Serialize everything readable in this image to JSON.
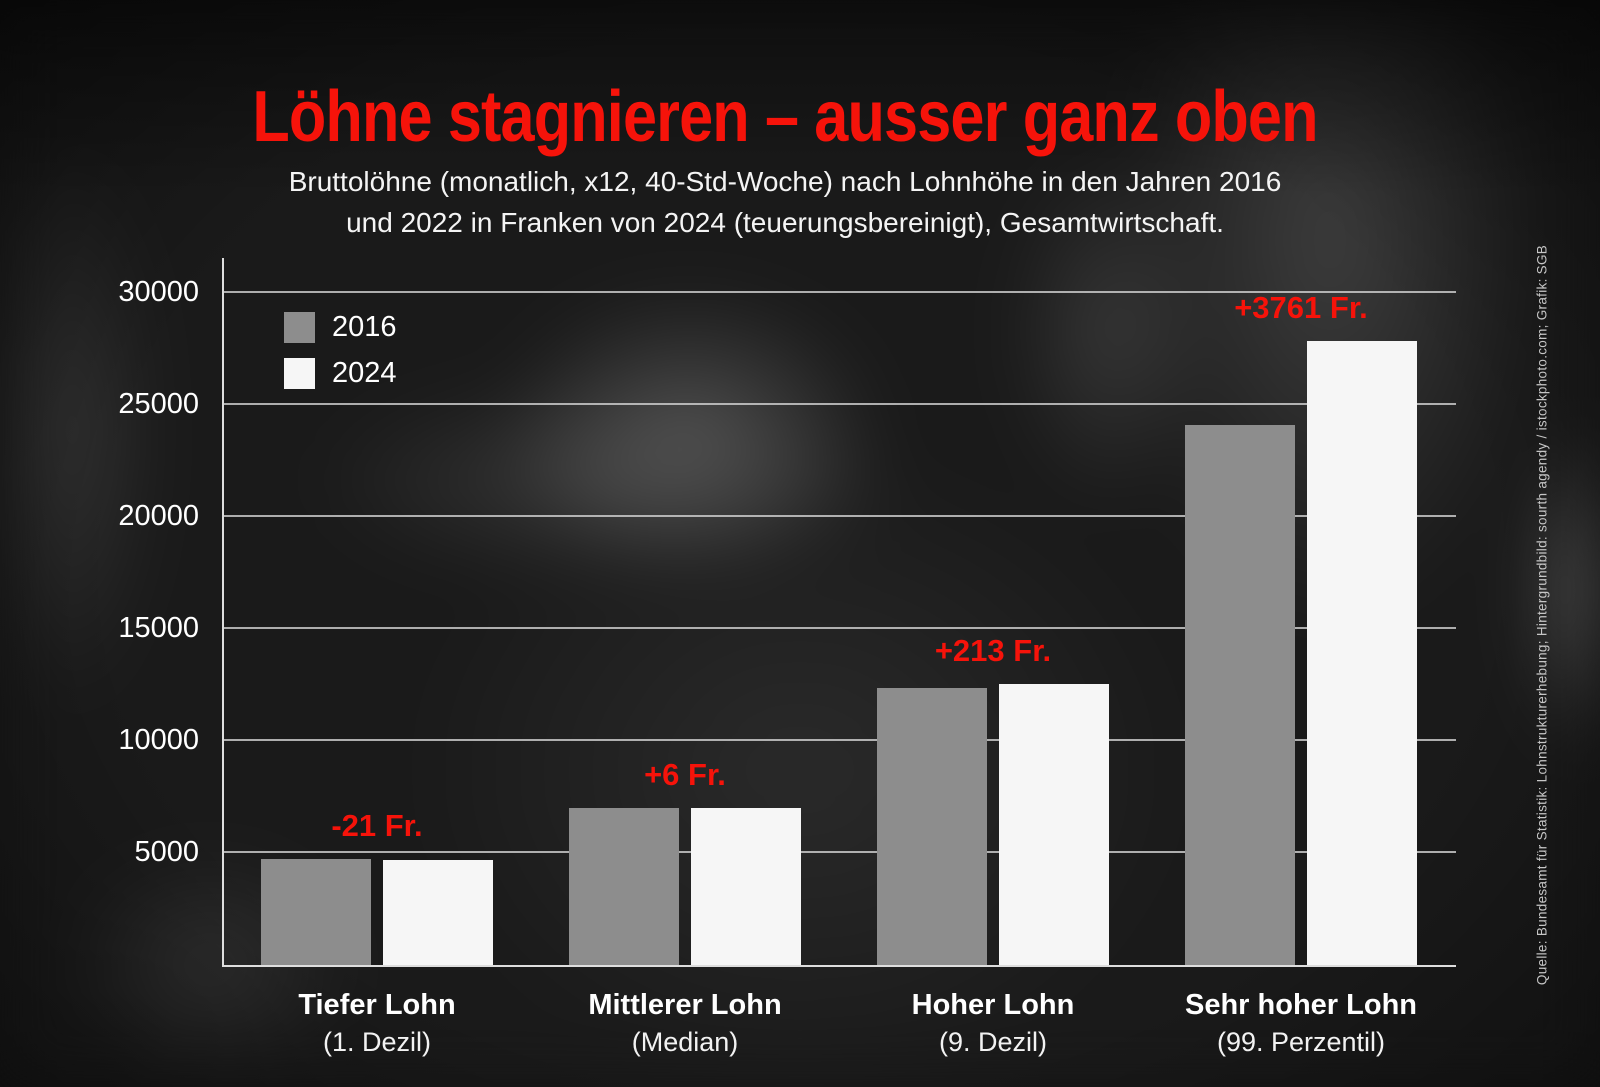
{
  "title": "Löhne stagnieren – ausser ganz oben",
  "subtitle": "Bruttolöhne (monatlich, x12, 40-Std-Woche) nach Lohnhöhe in den Jahren 2016\nund 2022 in Franken von 2024 (teuerungsbereinigt), Gesamtwirtschaft.",
  "source_credit": "Quelle: Bundesamt für Statistik: Lohnstrukturerhebung; Hintergrundbild: sourth agendy / istockphoto.com; Grafik: SGB",
  "colors": {
    "accent_red": "#f6130a",
    "bar_2016": "#8d8d8d",
    "bar_2024": "#f6f6f6",
    "gridline": "#cfcfcf",
    "text": "#ffffff"
  },
  "legend": {
    "items": [
      {
        "label": "2016",
        "color": "#8d8d8d"
      },
      {
        "label": "2024",
        "color": "#f6f6f6"
      }
    ]
  },
  "chart_data": {
    "type": "bar",
    "title": "Löhne stagnieren – ausser ganz oben",
    "subtitle": "Bruttolöhne (monatlich, x12, 40-Std-Woche) nach Lohnhöhe in den Jahren 2016 und 2022 in Franken von 2024 (teuerungsbereinigt), Gesamtwirtschaft.",
    "categories": [
      "Tiefer Lohn",
      "Mittlerer Lohn",
      "Hoher Lohn",
      "Sehr hoher Lohn"
    ],
    "category_sublabels": [
      "(1. Dezil)",
      "(Median)",
      "(9. Dezil)",
      "(99. Perzentil)"
    ],
    "series": [
      {
        "name": "2016",
        "color": "#8d8d8d",
        "values": [
          4730,
          7000,
          12350,
          24100
        ]
      },
      {
        "name": "2024",
        "color": "#f6f6f6",
        "values": [
          4709,
          7006,
          12563,
          27861
        ]
      }
    ],
    "annotations": [
      "-21 Fr.",
      "+6 Fr.",
      "+213 Fr.",
      "+3761 Fr."
    ],
    "xlabel": "",
    "ylabel": "",
    "ylim": [
      0,
      30000
    ],
    "yticks": [
      5000,
      10000,
      15000,
      20000,
      25000,
      30000
    ],
    "grid": true,
    "legend_position": "top-left"
  }
}
